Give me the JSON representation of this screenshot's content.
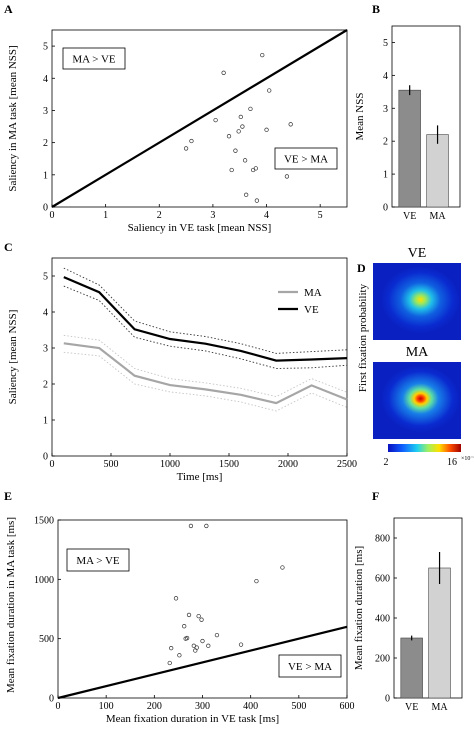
{
  "chart_data": [
    {
      "panel": "A",
      "type": "scatter",
      "xlabel": "Saliency in VE task [mean NSS]",
      "ylabel": "Saliency in MA task [mean NSS]",
      "xlim": [
        0,
        5.5
      ],
      "ylim": [
        0,
        5.5
      ],
      "xticks": [
        "0",
        "1",
        "2",
        "3",
        "4",
        "5"
      ],
      "yticks": [
        "0",
        "1",
        "2",
        "3",
        "4",
        "5"
      ],
      "annotations": {
        "upper_left": "MA > VE",
        "lower_right": "VE > MA"
      },
      "diagonal": [
        [
          0,
          0
        ],
        [
          5.5,
          5.5
        ]
      ],
      "points": [
        [
          2.5,
          1.82
        ],
        [
          2.6,
          2.05
        ],
        [
          3.05,
          2.7
        ],
        [
          3.2,
          4.17
        ],
        [
          3.3,
          2.2
        ],
        [
          3.35,
          1.15
        ],
        [
          3.42,
          1.75
        ],
        [
          3.48,
          2.35
        ],
        [
          3.52,
          2.8
        ],
        [
          3.55,
          2.5
        ],
        [
          3.6,
          1.45
        ],
        [
          3.62,
          0.38
        ],
        [
          3.7,
          3.05
        ],
        [
          3.75,
          1.15
        ],
        [
          3.8,
          1.2
        ],
        [
          3.82,
          0.2
        ],
        [
          3.92,
          4.72
        ],
        [
          4.0,
          2.4
        ],
        [
          4.05,
          3.62
        ],
        [
          4.38,
          0.95
        ],
        [
          4.45,
          2.57
        ]
      ]
    },
    {
      "panel": "B",
      "type": "bar",
      "ylabel": "Mean NSS",
      "categories": [
        "VE",
        "MA"
      ],
      "values": [
        3.55,
        2.2
      ],
      "errors": [
        0.15,
        0.28
      ],
      "ylim": [
        0,
        5.5
      ],
      "yticks": [
        "0",
        "1",
        "2",
        "3",
        "4",
        "5"
      ],
      "colors": [
        "#8c8c8c",
        "#d2d2d2"
      ]
    },
    {
      "panel": "C",
      "type": "line",
      "xlabel": "Time [ms]",
      "ylabel": "Saliency [mean NSS]",
      "xlim": [
        0,
        2500
      ],
      "ylim": [
        0,
        5.5
      ],
      "xticks": [
        "0",
        "500",
        "1000",
        "1500",
        "2000",
        "2500"
      ],
      "yticks": [
        "0",
        "1",
        "2",
        "3",
        "4",
        "5"
      ],
      "x": [
        100,
        400,
        700,
        1000,
        1300,
        1600,
        1900,
        2200,
        2500
      ],
      "series": [
        {
          "name": "MA",
          "color": "#a6a6a6",
          "values": [
            3.13,
            3.0,
            2.23,
            1.97,
            1.85,
            1.7,
            1.47,
            1.96,
            1.57
          ],
          "upper": [
            3.35,
            3.22,
            2.43,
            2.15,
            2.03,
            1.88,
            1.65,
            2.15,
            1.77
          ],
          "lower": [
            2.88,
            2.78,
            2.0,
            1.78,
            1.67,
            1.5,
            1.25,
            1.75,
            1.35
          ]
        },
        {
          "name": "VE",
          "color": "#000000",
          "values": [
            4.97,
            4.55,
            3.52,
            3.25,
            3.12,
            2.92,
            2.65,
            2.68,
            2.72
          ],
          "upper": [
            5.22,
            4.75,
            3.75,
            3.45,
            3.32,
            3.12,
            2.85,
            2.9,
            2.95
          ],
          "lower": [
            4.72,
            4.32,
            3.3,
            3.05,
            2.92,
            2.7,
            2.43,
            2.45,
            2.52
          ]
        }
      ],
      "legend": "top-right"
    },
    {
      "panel": "D",
      "type": "heatmap",
      "ylabel": "First fixation probability",
      "maps": [
        {
          "title": "VE",
          "peak": "yellow-orange"
        },
        {
          "title": "MA",
          "peak": "red"
        }
      ],
      "colorbar": {
        "min_label": "2",
        "max_label": "16",
        "exponent": "×10⁻⁶"
      }
    },
    {
      "panel": "E",
      "type": "scatter",
      "xlabel": "Mean fixation duration in VE task [ms]",
      "ylabel": "Mean fixation duration in MA task [ms]",
      "xlim": [
        0,
        600
      ],
      "ylim": [
        0,
        1500
      ],
      "xticks": [
        "0",
        "100",
        "200",
        "300",
        "400",
        "500",
        "600"
      ],
      "yticks": [
        "0",
        "500",
        "1000",
        "1500"
      ],
      "annotations": {
        "upper_left": "MA > VE",
        "lower_right": "VE > MA"
      },
      "diagonal": [
        [
          0,
          0
        ],
        [
          600,
          600
        ]
      ],
      "points": [
        [
          232,
          295
        ],
        [
          235,
          420
        ],
        [
          245,
          840
        ],
        [
          252,
          360
        ],
        [
          262,
          605
        ],
        [
          265,
          500
        ],
        [
          268,
          505
        ],
        [
          272,
          700
        ],
        [
          276,
          1450
        ],
        [
          282,
          440
        ],
        [
          285,
          400
        ],
        [
          288,
          425
        ],
        [
          292,
          690
        ],
        [
          298,
          660
        ],
        [
          300,
          480
        ],
        [
          308,
          1450
        ],
        [
          312,
          440
        ],
        [
          330,
          530
        ],
        [
          380,
          450
        ],
        [
          412,
          985
        ],
        [
          466,
          1100
        ]
      ]
    },
    {
      "panel": "F",
      "type": "bar",
      "ylabel": "Mean fixation duration [ms]",
      "categories": [
        "VE",
        "MA"
      ],
      "values": [
        300,
        650
      ],
      "errors": [
        12,
        80
      ],
      "ylim": [
        0,
        900
      ],
      "yticks": [
        "0",
        "200",
        "400",
        "600",
        "800"
      ],
      "colors": [
        "#8c8c8c",
        "#d2d2d2"
      ]
    }
  ]
}
